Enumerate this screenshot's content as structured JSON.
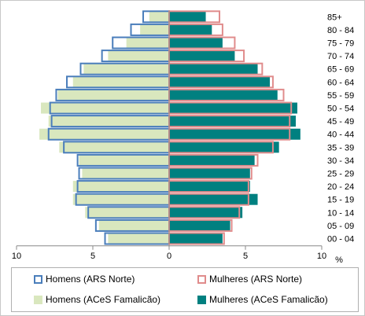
{
  "chart_data": {
    "type": "bar",
    "orientation": "horizontal-population-pyramid",
    "categories": [
      "00 - 04",
      "05 - 09",
      "10 - 14",
      "15 - 19",
      "20 - 24",
      "25 - 29",
      "30 - 34",
      "35 - 39",
      "40 - 44",
      "45 - 49",
      "50 - 54",
      "55 - 59",
      "60 - 64",
      "65 - 69",
      "70 - 74",
      "75 - 79",
      "80 - 84",
      "85+"
    ],
    "xlim": [
      -10,
      10
    ],
    "x_ticks": [
      -10,
      -5,
      0,
      5,
      10
    ],
    "x_tick_labels": [
      "10",
      "5",
      "0",
      "5",
      "10"
    ],
    "x_unit": "%",
    "series": [
      {
        "name": "Homens (ARS Norte)",
        "side": "left",
        "style": "outline",
        "color": "#4a7ebb",
        "values": [
          4.2,
          4.8,
          5.3,
          6.1,
          6.0,
          5.9,
          6.0,
          6.9,
          7.9,
          7.7,
          7.8,
          7.4,
          6.7,
          5.8,
          4.4,
          3.7,
          2.5,
          1.7
        ]
      },
      {
        "name": "Mulheres (ARS Norte)",
        "side": "right",
        "style": "outline",
        "color": "#e08c8c",
        "values": [
          3.6,
          4.1,
          4.6,
          5.2,
          5.2,
          5.4,
          5.8,
          6.8,
          7.9,
          7.9,
          8.0,
          7.5,
          6.8,
          6.1,
          4.9,
          4.3,
          3.5,
          3.3
        ]
      },
      {
        "name": "Homens (ACeS Famalicão)",
        "side": "left",
        "style": "filled",
        "color": "#d9e7be",
        "values": [
          4.0,
          4.6,
          5.5,
          6.3,
          6.3,
          5.7,
          5.9,
          7.2,
          8.5,
          7.9,
          8.4,
          7.3,
          6.3,
          5.6,
          4.0,
          2.8,
          1.9,
          1.3
        ]
      },
      {
        "name": "Mulheres (ACeS Famalicão)",
        "side": "right",
        "style": "filled",
        "color": "#008080",
        "values": [
          3.5,
          4.0,
          4.8,
          5.8,
          5.3,
          5.3,
          5.6,
          7.2,
          8.6,
          8.3,
          8.4,
          7.1,
          6.6,
          5.8,
          4.3,
          3.5,
          2.8,
          2.4
        ]
      }
    ]
  }
}
